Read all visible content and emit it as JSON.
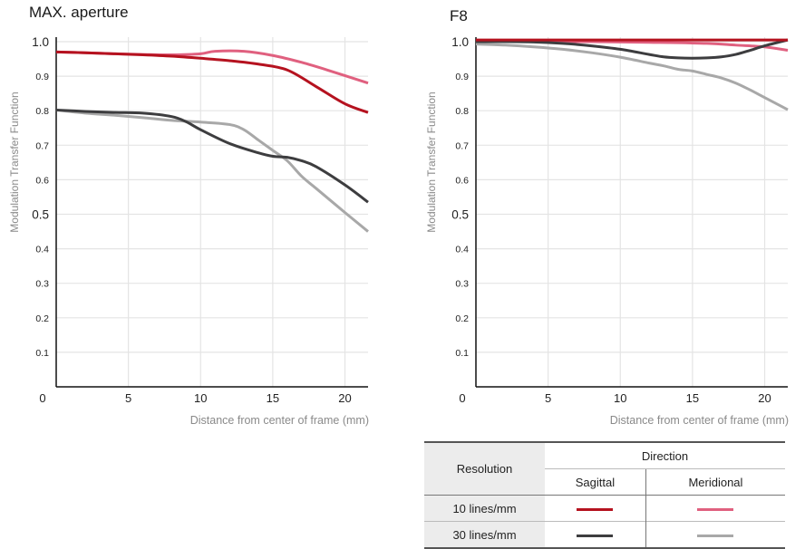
{
  "chart_data": [
    {
      "type": "line",
      "title": "MAX. aperture",
      "xlabel": "Distance from center of frame (mm)",
      "ylabel": "Modulation Transfer Function",
      "xlim": [
        0,
        21.6
      ],
      "ylim": [
        0,
        1.0
      ],
      "x_ticks": [
        "0",
        "5",
        "10",
        "15",
        "20"
      ],
      "y_ticks": [
        "0.1",
        "0.2",
        "0.3",
        "0.4",
        "0.5",
        "0.6",
        "0.7",
        "0.8",
        "0.9",
        "1.0"
      ],
      "grid": true,
      "series": [
        {
          "key": "sag10",
          "color": "#b5121f",
          "x": [
            0,
            2,
            4,
            6,
            8,
            10,
            12,
            14,
            16,
            18,
            20,
            21.6
          ],
          "y": [
            0.97,
            0.968,
            0.965,
            0.962,
            0.958,
            0.952,
            0.945,
            0.935,
            0.918,
            0.87,
            0.82,
            0.795
          ]
        },
        {
          "key": "mer10",
          "color": "#e0607f",
          "x": [
            0,
            2,
            4,
            6,
            8,
            10,
            11,
            13,
            15,
            17,
            19,
            21.6
          ],
          "y": [
            0.97,
            0.968,
            0.965,
            0.963,
            0.962,
            0.965,
            0.972,
            0.972,
            0.96,
            0.94,
            0.915,
            0.88
          ]
        },
        {
          "key": "sag30",
          "color": "#3d3d3f",
          "x": [
            0,
            2,
            4,
            6,
            8,
            9,
            10,
            12,
            14,
            15,
            16,
            17,
            18,
            20,
            21.6
          ],
          "y": [
            0.802,
            0.798,
            0.795,
            0.793,
            0.783,
            0.768,
            0.745,
            0.705,
            0.678,
            0.668,
            0.665,
            0.655,
            0.638,
            0.585,
            0.535
          ]
        },
        {
          "key": "mer30",
          "color": "#a8a8a8",
          "x": [
            0,
            2,
            4,
            6,
            8,
            10,
            12,
            13,
            14,
            15,
            16,
            17,
            18,
            20,
            21.6
          ],
          "y": [
            0.802,
            0.793,
            0.787,
            0.78,
            0.772,
            0.767,
            0.76,
            0.745,
            0.715,
            0.685,
            0.655,
            0.61,
            0.575,
            0.505,
            0.45
          ]
        }
      ]
    },
    {
      "type": "line",
      "title": "F8",
      "xlabel": "Distance from center of frame (mm)",
      "ylabel": "Modulation Transfer Function",
      "xlim": [
        0,
        21.6
      ],
      "ylim": [
        0,
        1.0
      ],
      "x_ticks": [
        "0",
        "5",
        "10",
        "15",
        "20"
      ],
      "y_ticks": [
        "0.1",
        "0.2",
        "0.3",
        "0.4",
        "0.5",
        "0.6",
        "0.7",
        "0.8",
        "0.9",
        "1.0"
      ],
      "grid": true,
      "series": [
        {
          "key": "sag10",
          "color": "#b5121f",
          "x": [
            0,
            5,
            10,
            15,
            20,
            21.6
          ],
          "y": [
            1.005,
            1.005,
            1.005,
            1.005,
            1.005,
            1.005
          ]
        },
        {
          "key": "mer10",
          "color": "#e0607f",
          "x": [
            0,
            4,
            8,
            12,
            16,
            18,
            20,
            21.6
          ],
          "y": [
            1.0,
            1.0,
            1.0,
            0.998,
            0.995,
            0.99,
            0.985,
            0.975
          ]
        },
        {
          "key": "sag30",
          "color": "#3d3d3f",
          "x": [
            0,
            2,
            4,
            6,
            8,
            10,
            12,
            13,
            14,
            15,
            16,
            17,
            18,
            19,
            20,
            21.6
          ],
          "y": [
            1.0,
            1.0,
            0.999,
            0.995,
            0.988,
            0.978,
            0.963,
            0.956,
            0.953,
            0.952,
            0.953,
            0.956,
            0.963,
            0.975,
            0.988,
            1.005
          ]
        },
        {
          "key": "mer30",
          "color": "#a8a8a8",
          "x": [
            0,
            2,
            4,
            6,
            8,
            10,
            12,
            13,
            14,
            15,
            16,
            17,
            18,
            19,
            20,
            21.6
          ],
          "y": [
            0.993,
            0.99,
            0.985,
            0.978,
            0.968,
            0.955,
            0.938,
            0.93,
            0.92,
            0.915,
            0.905,
            0.895,
            0.88,
            0.86,
            0.838,
            0.803
          ]
        }
      ]
    }
  ],
  "legend": {
    "resolution_header": "Resolution",
    "direction_header": "Direction",
    "sagittal_header": "Sagittal",
    "meridional_header": "Meridional",
    "rows": [
      {
        "label": "10 lines/mm",
        "sagittal_color": "#b5121f",
        "meridional_color": "#e0607f"
      },
      {
        "label": "30 lines/mm",
        "sagittal_color": "#3d3d3f",
        "meridional_color": "#a8a8a8"
      }
    ]
  }
}
